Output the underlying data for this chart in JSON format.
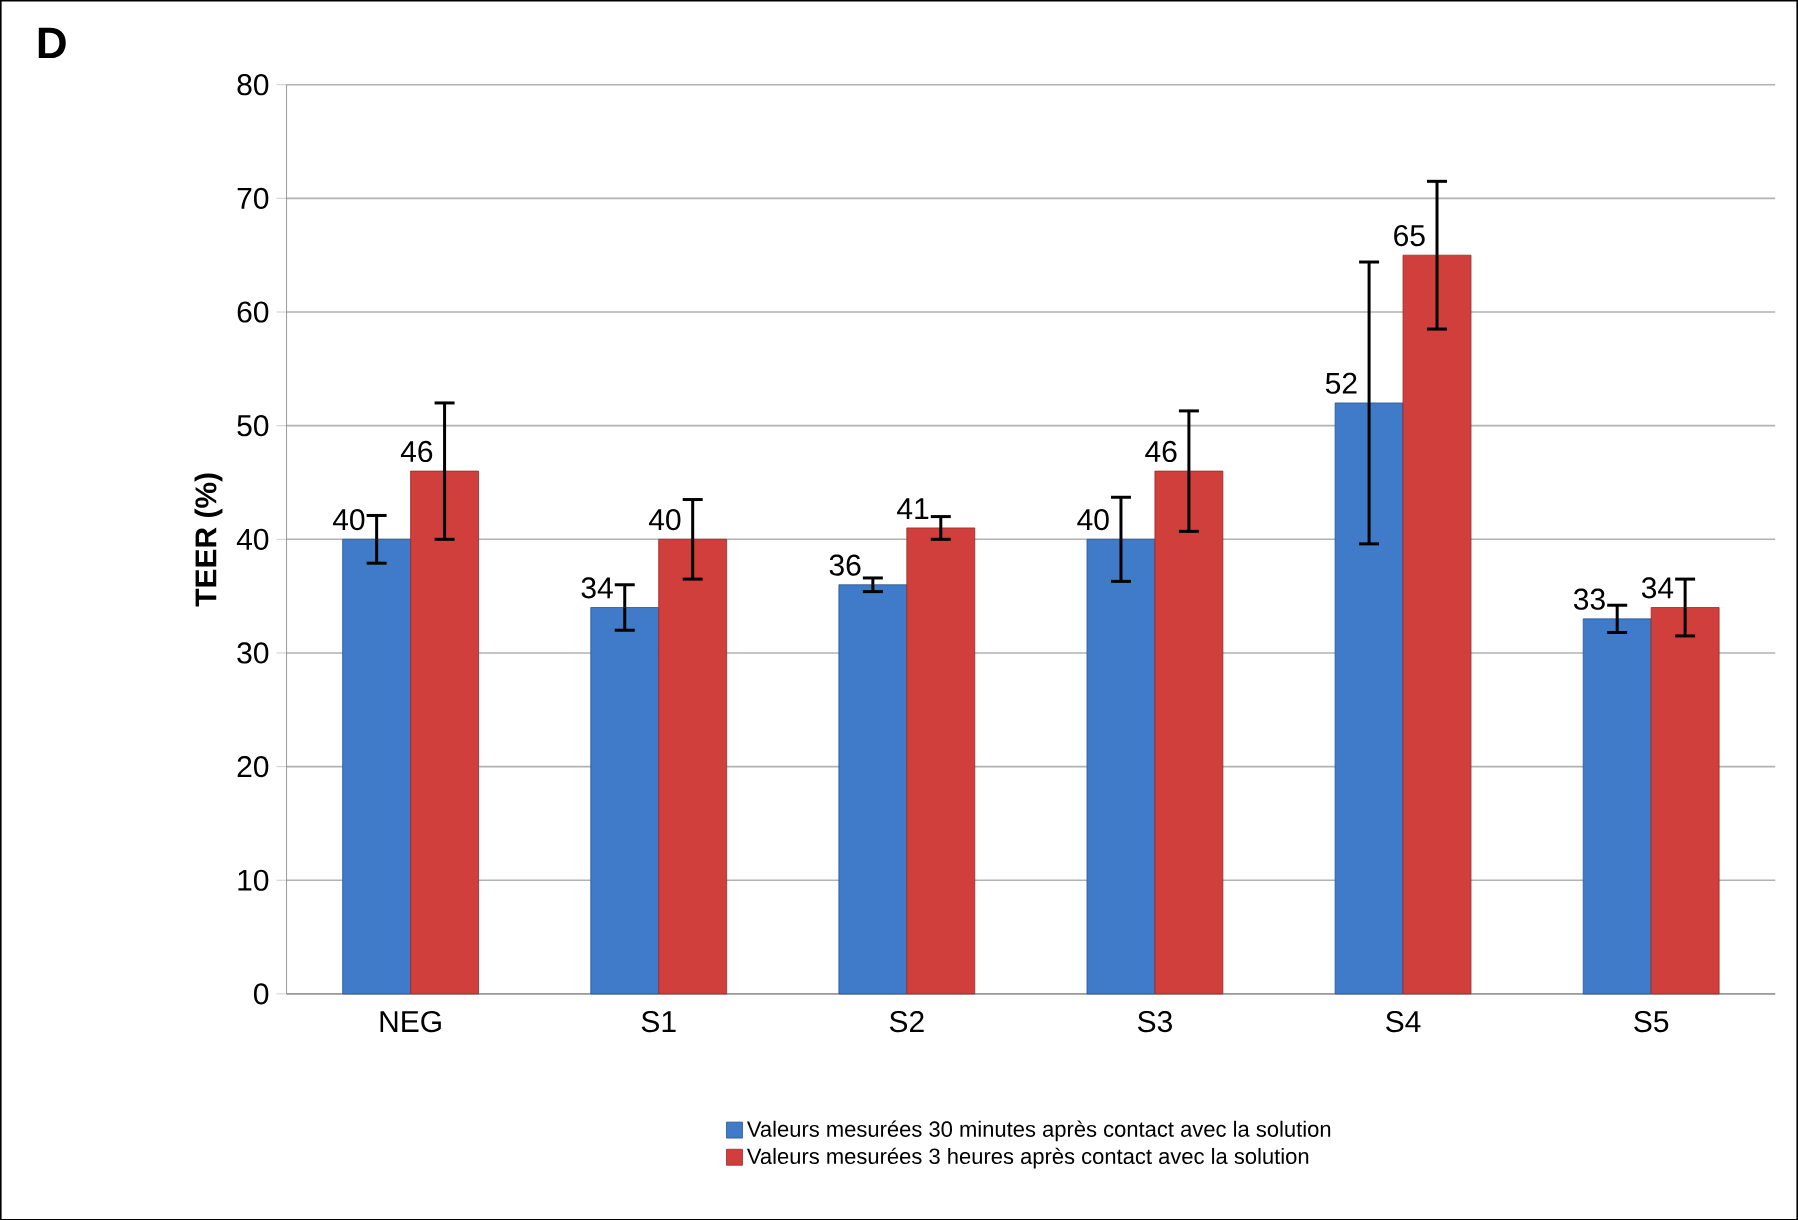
{
  "chart_data": {
    "type": "bar",
    "ylabel": "TEER (%)",
    "annotations": [
      "D"
    ],
    "categories": [
      "NEG",
      "S1",
      "S2",
      "S3",
      "S4",
      "S5"
    ],
    "series": [
      {
        "name": "Valeurs mesurées 30 minutes après contact avec la solution",
        "color": "#3f7bc8",
        "values": [
          40,
          34,
          36,
          40,
          52,
          33
        ],
        "errors": [
          2.1,
          2,
          0.6,
          3.7,
          12.4,
          1.2
        ]
      },
      {
        "name": "Valeurs mesurées 3 heures après contact avec la solution",
        "color": "#d13f3c",
        "values": [
          46,
          40,
          41,
          46,
          65,
          34
        ],
        "errors": [
          6,
          3.5,
          1,
          5.3,
          6.5,
          2.5
        ]
      }
    ],
    "ylim": [
      0,
      80
    ],
    "yticks": [
      0,
      10,
      20,
      30,
      40,
      50,
      60,
      70,
      80
    ],
    "grid": "y",
    "legend": "bottom",
    "data_labels": true
  }
}
